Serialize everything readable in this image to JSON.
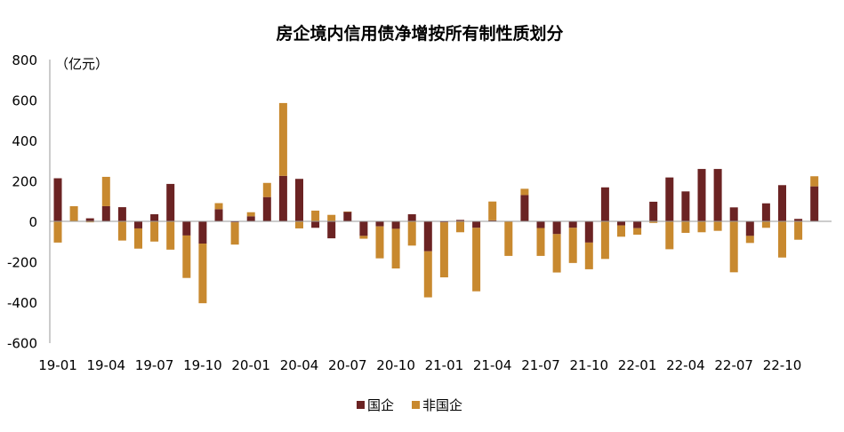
{
  "chart_data": {
    "type": "bar",
    "stacked": true,
    "title": "房企境内信用债净增按所有制性质划分",
    "unit_label": "（亿元）",
    "ylim": [
      -600,
      800
    ],
    "yticks": [
      800,
      600,
      400,
      200,
      0,
      -200,
      -400,
      -600
    ],
    "ytick_labels": [
      "800",
      "600",
      "400",
      "200",
      "0",
      "-200",
      "-400",
      "-600"
    ],
    "categories": [
      "19-01",
      "19-02",
      "19-03",
      "19-04",
      "19-05",
      "19-06",
      "19-07",
      "19-08",
      "19-09",
      "19-10",
      "19-11",
      "19-12",
      "20-01",
      "20-02",
      "20-03",
      "20-04",
      "20-05",
      "20-06",
      "20-07",
      "20-08",
      "20-09",
      "20-10",
      "20-11",
      "20-12",
      "21-01",
      "21-02",
      "21-03",
      "21-04",
      "21-05",
      "21-06",
      "21-07",
      "21-08",
      "21-09",
      "21-10",
      "21-11",
      "21-12",
      "22-01",
      "22-02",
      "22-03",
      "22-04",
      "22-05",
      "22-06",
      "22-07",
      "22-08",
      "22-09",
      "22-10",
      "22-11",
      "22-12"
    ],
    "xtick_labels": [
      "19-01",
      "19-04",
      "19-07",
      "19-10",
      "20-01",
      "20-04",
      "20-07",
      "20-10",
      "21-01",
      "21-04",
      "21-07",
      "21-10",
      "22-01",
      "22-04",
      "22-07",
      "22-10"
    ],
    "legend_position": "bottom",
    "series": [
      {
        "name": "国企",
        "color": "#6B2323",
        "values": [
          213,
          0,
          15,
          75,
          70,
          -35,
          35,
          185,
          -70,
          -110,
          60,
          -5,
          25,
          120,
          225,
          210,
          -32,
          -84,
          48,
          -72,
          -25,
          -37,
          35,
          -148,
          -5,
          7,
          -32,
          5,
          0,
          130,
          -33,
          -63,
          -32,
          -105,
          168,
          -20,
          -34,
          97,
          217,
          148,
          259,
          259,
          69,
          -72,
          89,
          179,
          12,
          173
        ]
      },
      {
        "name": "非国企",
        "color": "#C8892F",
        "values": [
          -105,
          75,
          -5,
          145,
          -95,
          -100,
          -100,
          -140,
          -210,
          -295,
          30,
          -110,
          20,
          70,
          360,
          -35,
          53,
          32,
          0,
          -14,
          -158,
          -196,
          -120,
          -228,
          -272,
          -54,
          -314,
          93,
          -171,
          31,
          -138,
          -190,
          -174,
          -132,
          -186,
          -56,
          -32,
          -8,
          -138,
          -57,
          -54,
          -47,
          -252,
          -35,
          -32,
          -179,
          -91,
          50
        ]
      }
    ]
  }
}
